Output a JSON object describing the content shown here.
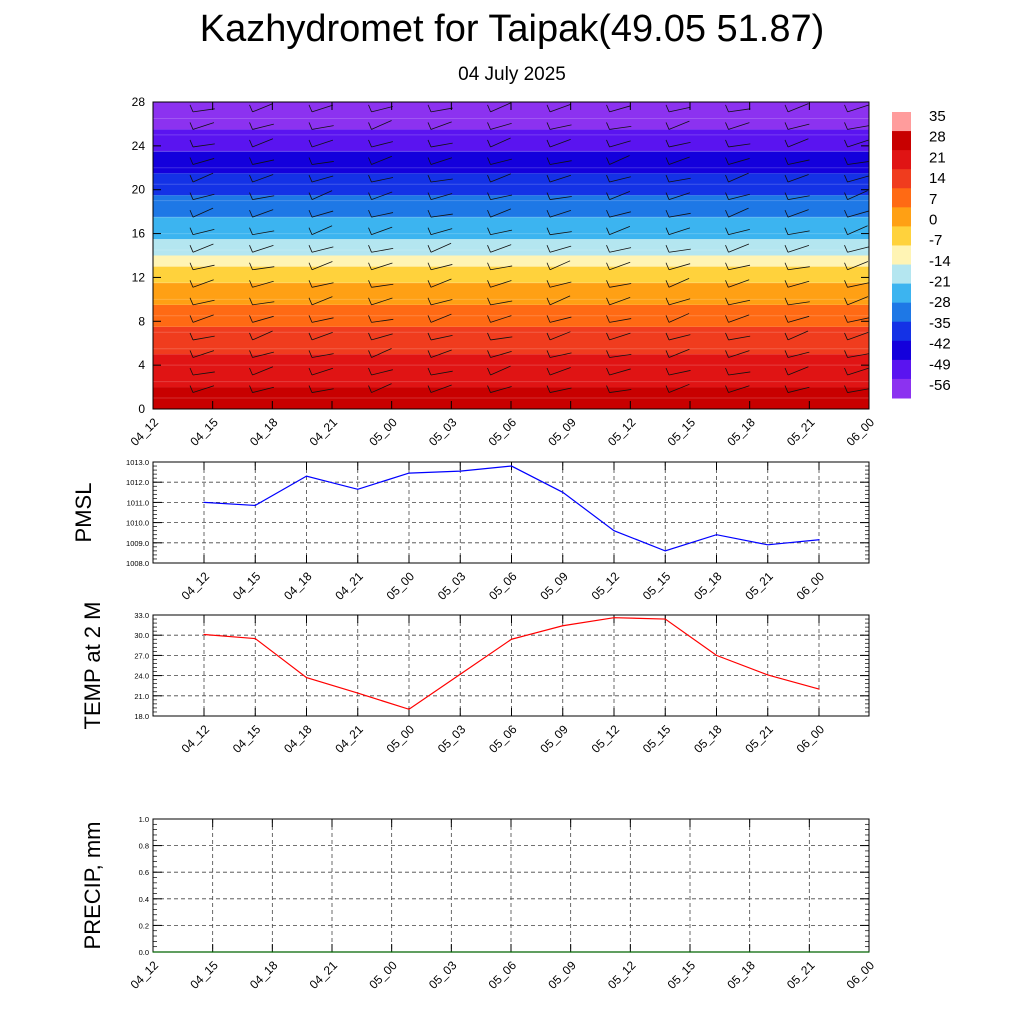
{
  "header": {
    "title": "Kazhydromet for Taipak(49.05 51.87)",
    "subtitle": "04 July 2025"
  },
  "chart_data": [
    {
      "type": "heatmap",
      "name": "vertical-profile",
      "x_ticks": [
        "04_12",
        "04_15",
        "04_18",
        "04_21",
        "05_00",
        "05_03",
        "05_06",
        "05_09",
        "05_12",
        "05_15",
        "05_18",
        "05_21",
        "06_00"
      ],
      "y_ticks": [
        "0",
        "4",
        "8",
        "12",
        "16",
        "20",
        "24",
        "28"
      ],
      "ylim": [
        0,
        28
      ],
      "colorbar": {
        "labels": [
          "35",
          "28",
          "21",
          "14",
          "7",
          "0",
          "-7",
          "-14",
          "-21",
          "-28",
          "-35",
          "-42",
          "-49",
          "-56"
        ]
      },
      "bands": [
        {
          "y0": 0,
          "y1": 2,
          "color": "#c80000"
        },
        {
          "y0": 2,
          "y1": 5,
          "color": "#e01414"
        },
        {
          "y0": 5,
          "y1": 7.5,
          "color": "#f03c1e"
        },
        {
          "y0": 7.5,
          "y1": 9.5,
          "color": "#ff6a14"
        },
        {
          "y0": 9.5,
          "y1": 11.5,
          "color": "#ffa014"
        },
        {
          "y0": 11.5,
          "y1": 13,
          "color": "#ffd23c"
        },
        {
          "y0": 13,
          "y1": 14,
          "color": "#fff4b4"
        },
        {
          "y0": 14,
          "y1": 15.5,
          "color": "#b4e6f0"
        },
        {
          "y0": 15.5,
          "y1": 17.5,
          "color": "#3cb4f0"
        },
        {
          "y0": 17.5,
          "y1": 19.5,
          "color": "#1e78e6"
        },
        {
          "y0": 19.5,
          "y1": 21.5,
          "color": "#1432e6"
        },
        {
          "y0": 21.5,
          "y1": 23.5,
          "color": "#1400dc"
        },
        {
          "y0": 23.5,
          "y1": 25.5,
          "color": "#5a14f0"
        },
        {
          "y0": 25.5,
          "y1": 28,
          "color": "#8c32f0"
        }
      ]
    },
    {
      "type": "line",
      "name": "pmsl",
      "ylabel": "PMSL",
      "x": [
        "04_12",
        "04_15",
        "04_18",
        "04_21",
        "05_00",
        "05_03",
        "05_06",
        "05_09",
        "05_12",
        "05_15",
        "05_18",
        "05_21",
        "06_00"
      ],
      "y_ticks": [
        "1008.0",
        "1009.0",
        "1010.0",
        "1011.0",
        "1012.0",
        "1013.0"
      ],
      "ylim": [
        1008,
        1013
      ],
      "series": [
        {
          "values": [
            1011.0,
            1010.85,
            1012.3,
            1011.65,
            1012.45,
            1012.55,
            1012.8,
            1011.5,
            1009.6,
            1008.6,
            1009.4,
            1008.9,
            1009.15
          ],
          "color": "#0000ff"
        }
      ]
    },
    {
      "type": "line",
      "name": "temp2m",
      "ylabel": "TEMP at 2 M",
      "x": [
        "04_12",
        "04_15",
        "04_18",
        "04_21",
        "05_00",
        "05_03",
        "05_06",
        "05_09",
        "05_12",
        "05_15",
        "05_18",
        "05_21",
        "06_00"
      ],
      "y_ticks": [
        "18.0",
        "21.0",
        "24.0",
        "27.0",
        "30.0",
        "33.0"
      ],
      "ylim": [
        18,
        33
      ],
      "series": [
        {
          "values": [
            30.1,
            29.5,
            23.7,
            21.4,
            19.0,
            24.2,
            29.4,
            31.4,
            32.6,
            32.4,
            27.0,
            24.1,
            22.0
          ],
          "color": "#ff0000"
        }
      ]
    },
    {
      "type": "line",
      "name": "precip",
      "ylabel": "PRECIP, mm",
      "x_ticks": [
        "04_12",
        "04_15",
        "04_18",
        "04_21",
        "05_00",
        "05_03",
        "05_06",
        "05_09",
        "05_12",
        "05_15",
        "05_18",
        "05_21",
        "06_00"
      ],
      "y_ticks": [
        "0.0",
        "0.2",
        "0.4",
        "0.6",
        "0.8",
        "1.0"
      ],
      "ylim": [
        0,
        1
      ],
      "series": [
        {
          "values": [
            0,
            0,
            0,
            0,
            0,
            0,
            0,
            0,
            0,
            0,
            0,
            0,
            0
          ],
          "color": "#006400"
        }
      ]
    }
  ]
}
